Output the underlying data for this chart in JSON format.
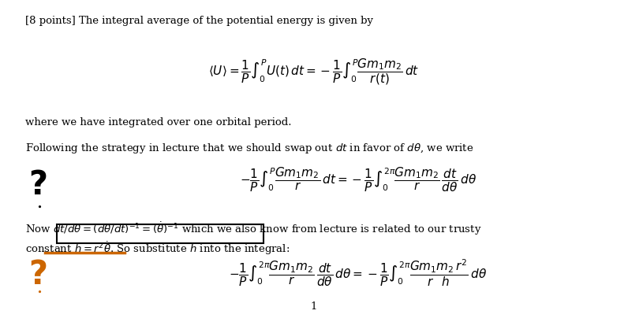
{
  "background_color": "#ffffff",
  "figsize": [
    7.96,
    4.04
  ],
  "dpi": 100,
  "text_color_black": "#000000",
  "text_color_orange": "#cc6600",
  "line1": "[8 points] The integral average of the potential energy is given by",
  "line2": "where we have integrated over one orbital period.",
  "line3": "Following the strategy in lecture that we should swap out $dt$ in favor of $d\\theta$, we write",
  "line4": "Now $dt/d\\theta = (d\\theta/dt)^{-1} = (\\dot{\\theta})^{-1}$ which we also know from lecture is related to our trusty",
  "line5": "constant $h = r^2\\dot{\\theta}$. So substitute $h$ into the integral:",
  "page_number": "1"
}
